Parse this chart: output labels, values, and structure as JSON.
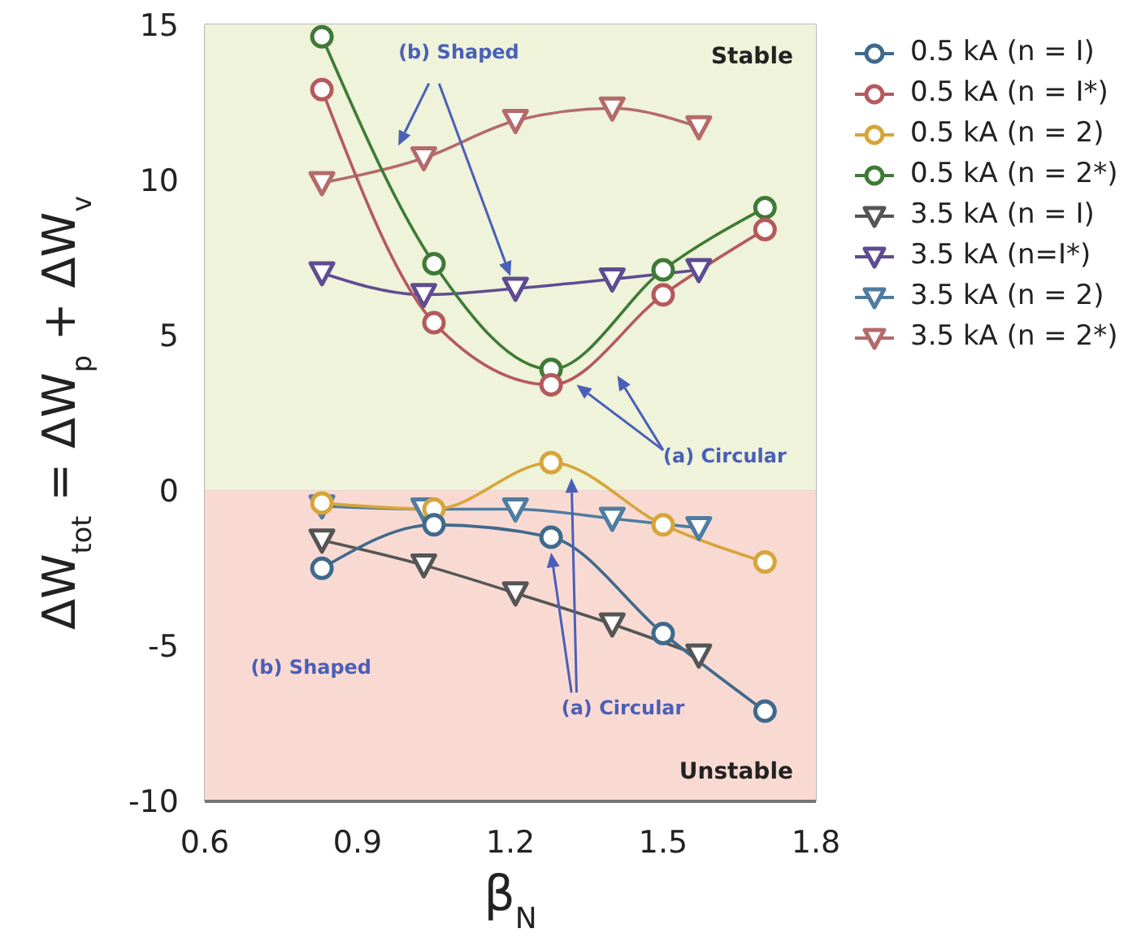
{
  "chart_data": {
    "type": "line",
    "xlabel": "β$_{N}$",
    "ylabel": "ΔW$_{tot}$ = ΔW$_{p}$ + ΔW$_{v}$",
    "xlim": [
      0.6,
      1.8
    ],
    "xticks": [
      0.6,
      0.9,
      1.2,
      1.5,
      1.8
    ],
    "ylim": [
      -10,
      15
    ],
    "yticks": [
      -10,
      -5,
      0,
      5,
      10,
      15
    ],
    "grid": true,
    "legend": "right",
    "bands": [
      {
        "axis": "y",
        "from": 0,
        "to": 15,
        "label": "Stable",
        "color": "#eef3d9"
      },
      {
        "axis": "y",
        "from": -10,
        "to": 0,
        "label": "Unstable",
        "color": "#f9dad3"
      }
    ],
    "annotations": [
      "(b) Shaped",
      "(a) Circular",
      "(b) Shaped",
      {
        "text": "(a) Circular",
        "x": 1.28,
        "y": -2
      }
    ],
    "series": [
      {
        "name": "0.5 kA (n = I)",
        "color": "#3f6a8c",
        "marker": "circle",
        "x": [
          0.83,
          1.05,
          1.28,
          1.5,
          1.7
        ],
        "values": [
          -2.5,
          -1.1,
          -1.5,
          -4.6,
          -7.1
        ]
      },
      {
        "name": "0.5 kA (n = I*)",
        "color": "#b5595c",
        "marker": "circle",
        "x": [
          0.83,
          1.05,
          1.28,
          1.5,
          1.7
        ],
        "values": [
          12.9,
          5.4,
          3.4,
          6.3,
          8.4
        ]
      },
      {
        "name": "0.5 kA (n = 2)",
        "color": "#d6a53a",
        "marker": "circle",
        "x": [
          0.83,
          1.05,
          1.28,
          1.5,
          1.7
        ],
        "values": [
          -0.4,
          -0.6,
          0.9,
          -1.1,
          -2.3
        ]
      },
      {
        "name": "0.5 kA (n = 2*)",
        "color": "#3f7a36",
        "marker": "circle",
        "x": [
          0.83,
          1.05,
          1.28,
          1.5,
          1.7
        ],
        "values": [
          14.6,
          7.3,
          3.9,
          7.1,
          9.1
        ]
      },
      {
        "name": "3.5 kA (n = I)",
        "color": "#555555",
        "marker": "triangle",
        "x": [
          0.83,
          1.03,
          1.21,
          1.4,
          1.57
        ],
        "values": [
          -1.6,
          -2.4,
          -3.3,
          -4.3,
          -5.3
        ]
      },
      {
        "name": "3.5 kA (n=I*)",
        "color": "#5e4c91",
        "marker": "triangle",
        "x": [
          0.83,
          1.03,
          1.21,
          1.4,
          1.57
        ],
        "values": [
          7.0,
          6.3,
          6.5,
          6.8,
          7.1
        ]
      },
      {
        "name": "3.5 kA (n = 2)",
        "color": "#4f7ca0",
        "marker": "triangle",
        "x": [
          0.83,
          1.03,
          1.21,
          1.4,
          1.57
        ],
        "values": [
          -0.5,
          -0.6,
          -0.6,
          -0.9,
          -1.2
        ]
      },
      {
        "name": "3.5 kA (n = 2*)",
        "color": "#b56a6a",
        "marker": "triangle",
        "x": [
          0.83,
          1.03,
          1.21,
          1.4,
          1.57
        ],
        "values": [
          9.9,
          10.7,
          11.9,
          12.3,
          11.7
        ]
      }
    ]
  }
}
